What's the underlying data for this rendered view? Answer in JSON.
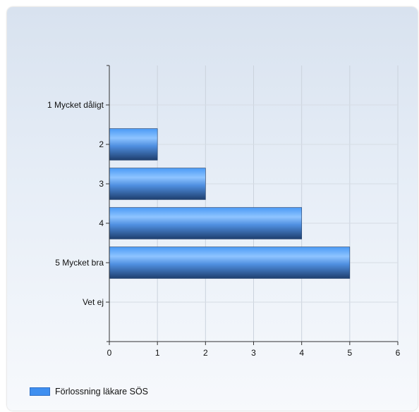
{
  "chart_data": {
    "type": "bar",
    "orientation": "horizontal",
    "categories": [
      "1 Mycket dåligt",
      "2",
      "3",
      "4",
      "5 Mycket bra",
      "Vet ej"
    ],
    "series": [
      {
        "name": "Förlossning läkare SÖS",
        "values": [
          0,
          1,
          2,
          4,
          5,
          0
        ],
        "color": "#3f8ff0"
      }
    ],
    "xticks": [
      "0",
      "1",
      "2",
      "3",
      "4",
      "5",
      "6"
    ],
    "xlim": [
      0,
      6
    ],
    "grid": true,
    "legend_position": "bottom-left"
  }
}
